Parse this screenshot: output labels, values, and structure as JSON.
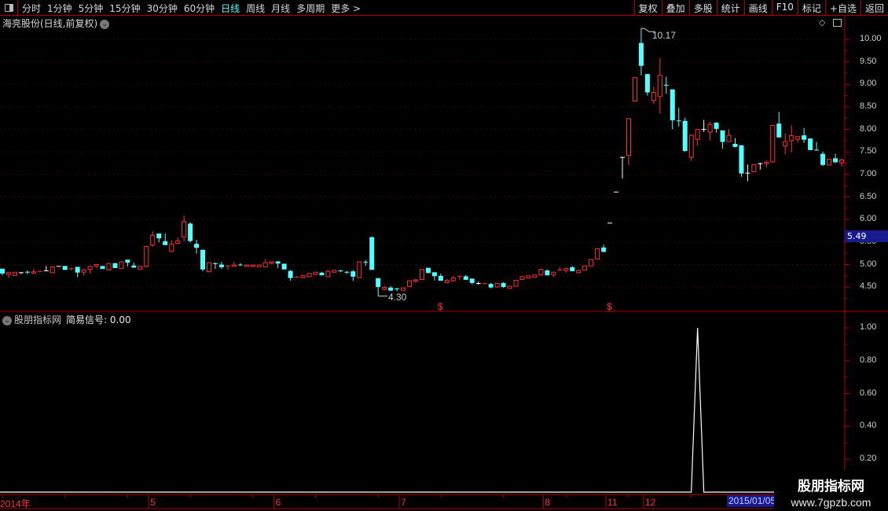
{
  "toolbar": {
    "tabs": [
      {
        "label": "分时"
      },
      {
        "label": "1分钟"
      },
      {
        "label": "5分钟"
      },
      {
        "label": "15分钟"
      },
      {
        "label": "30分钟"
      },
      {
        "label": "60分钟"
      },
      {
        "label": "日线",
        "active": true
      },
      {
        "label": "周线"
      },
      {
        "label": "月线"
      },
      {
        "label": "多周期"
      },
      {
        "label": "更多 >"
      }
    ],
    "buttons": [
      {
        "label": "复权"
      },
      {
        "label": "叠加"
      },
      {
        "label": "多股"
      },
      {
        "label": "统计"
      },
      {
        "label": "画线"
      },
      {
        "label": "F10"
      },
      {
        "label": "标记"
      },
      {
        "label": "+自选"
      },
      {
        "label": "返回"
      }
    ]
  },
  "main_chart": {
    "title": "海亮股份(日线,前复权)",
    "current_price": "5.49",
    "high_annotation": "10.17",
    "low_annotation": "4.30",
    "y_ticks": [
      "10.00",
      "9.50",
      "9.00",
      "8.50",
      "8.00",
      "7.50",
      "7.00",
      "6.50",
      "6.00",
      "5.50",
      "5.00",
      "4.50"
    ]
  },
  "indicator": {
    "name": "股朋指标网",
    "series_label": "简易信号: 0.00",
    "y_ticks": [
      "1.00",
      "0.80",
      "0.60",
      "0.40",
      "0.20"
    ]
  },
  "x_axis": {
    "ticks": [
      {
        "label": "2014年",
        "bar": 0
      },
      {
        "label": "5",
        "bar": 24
      },
      {
        "label": "6",
        "bar": 44
      },
      {
        "label": "7",
        "bar": 64
      },
      {
        "label": "8",
        "bar": 87
      },
      {
        "label": "11",
        "bar": 97
      },
      {
        "label": "12",
        "bar": 103
      }
    ],
    "cursor_date": "2015/01/05"
  },
  "watermark": {
    "line1": "股朋指标网",
    "line2": "www.7gpzb.com"
  },
  "colors": {
    "up": "#ff3232",
    "down": "#54ffff",
    "flat": "#ffffff",
    "axis": "#b00000",
    "signal": "#ffffff",
    "date_box": "#1a1a90"
  },
  "chart_data": [
    {
      "type": "candlestick",
      "title": "",
      "ylim": [
        4.2,
        10.3
      ],
      "grid": true,
      "ohlc_fields": [
        "open",
        "high",
        "low",
        "close"
      ],
      "ohlc": [
        [
          4.9,
          4.9,
          4.76,
          4.81
        ],
        [
          4.78,
          4.82,
          4.71,
          4.82
        ],
        [
          4.76,
          4.83,
          4.76,
          4.83
        ],
        [
          4.82,
          4.82,
          4.79,
          4.82
        ],
        [
          4.83,
          4.87,
          4.79,
          4.82
        ],
        [
          4.81,
          4.91,
          4.79,
          4.84
        ],
        [
          4.83,
          4.86,
          4.83,
          4.85
        ],
        [
          4.86,
          4.97,
          4.86,
          4.86
        ],
        [
          4.82,
          4.95,
          4.82,
          4.95
        ],
        [
          4.96,
          4.97,
          4.96,
          4.96
        ],
        [
          4.96,
          4.96,
          4.88,
          4.89
        ],
        [
          4.89,
          4.92,
          4.87,
          4.91
        ],
        [
          4.94,
          4.94,
          4.72,
          4.83
        ],
        [
          4.83,
          4.9,
          4.76,
          4.88
        ],
        [
          4.89,
          4.96,
          4.8,
          4.96
        ],
        [
          4.96,
          5.01,
          4.93,
          5.0
        ],
        [
          4.96,
          4.96,
          4.91,
          4.91
        ],
        [
          4.88,
          5.02,
          4.87,
          5.02
        ],
        [
          5.02,
          5.04,
          4.93,
          4.93
        ],
        [
          4.91,
          5.06,
          4.91,
          5.06
        ],
        [
          5.1,
          5.1,
          4.96,
          5.05
        ],
        [
          4.97,
          5.04,
          4.93,
          4.94
        ],
        [
          4.9,
          4.96,
          4.88,
          4.96
        ],
        [
          4.96,
          5.42,
          4.94,
          5.4
        ],
        [
          5.43,
          5.74,
          5.39,
          5.65
        ],
        [
          5.68,
          5.69,
          5.49,
          5.59
        ],
        [
          5.51,
          5.69,
          5.44,
          5.44
        ],
        [
          5.29,
          5.54,
          5.29,
          5.45
        ],
        [
          5.47,
          5.6,
          5.45,
          5.52
        ],
        [
          5.61,
          6.09,
          5.52,
          5.95
        ],
        [
          5.9,
          5.94,
          5.49,
          5.53
        ],
        [
          5.45,
          5.55,
          5.24,
          5.38
        ],
        [
          5.32,
          5.32,
          4.85,
          4.9
        ],
        [
          4.84,
          5.04,
          4.84,
          5.04
        ],
        [
          5.02,
          5.05,
          4.9,
          5.01
        ],
        [
          4.99,
          5.06,
          4.9,
          4.95
        ],
        [
          4.95,
          4.97,
          4.88,
          4.97
        ],
        [
          4.96,
          5.06,
          4.96,
          4.99
        ],
        [
          4.99,
          5.03,
          4.97,
          4.97
        ],
        [
          4.96,
          4.99,
          4.95,
          4.99
        ],
        [
          4.96,
          4.99,
          4.94,
          4.99
        ],
        [
          4.95,
          4.99,
          4.95,
          4.99
        ],
        [
          4.95,
          5.12,
          4.95,
          5.04
        ],
        [
          5.03,
          5.06,
          5.0,
          5.06
        ],
        [
          5.06,
          5.08,
          4.92,
          5.03
        ],
        [
          5.01,
          5.01,
          4.89,
          4.9
        ],
        [
          4.85,
          4.88,
          4.64,
          4.71
        ],
        [
          4.71,
          4.74,
          4.71,
          4.72
        ],
        [
          4.71,
          4.77,
          4.7,
          4.75
        ],
        [
          4.73,
          4.8,
          4.72,
          4.8
        ],
        [
          4.78,
          4.83,
          4.78,
          4.83
        ],
        [
          4.81,
          4.84,
          4.76,
          4.77
        ],
        [
          4.73,
          4.88,
          4.72,
          4.85
        ],
        [
          4.83,
          4.87,
          4.83,
          4.87
        ],
        [
          4.86,
          4.88,
          4.83,
          4.84
        ],
        [
          4.83,
          4.86,
          4.79,
          4.82
        ],
        [
          4.84,
          4.88,
          4.64,
          4.74
        ],
        [
          4.71,
          5.06,
          4.71,
          5.06
        ],
        [
          5.05,
          5.1,
          4.97,
          5.04
        ],
        [
          5.6,
          5.62,
          4.89,
          4.89
        ],
        [
          4.69,
          4.69,
          4.3,
          4.51
        ],
        [
          4.45,
          4.53,
          4.43,
          4.49
        ],
        [
          4.48,
          4.52,
          4.41,
          4.43
        ],
        [
          4.46,
          4.48,
          4.41,
          4.45
        ],
        [
          4.43,
          4.48,
          4.42,
          4.48
        ],
        [
          4.51,
          4.64,
          4.51,
          4.64
        ],
        [
          4.63,
          4.68,
          4.59,
          4.66
        ],
        [
          4.67,
          4.9,
          4.67,
          4.89
        ],
        [
          4.92,
          4.92,
          4.81,
          4.82
        ],
        [
          4.82,
          4.82,
          4.65,
          4.75
        ],
        [
          4.74,
          4.8,
          4.64,
          4.65
        ],
        [
          4.6,
          4.68,
          4.6,
          4.65
        ],
        [
          4.64,
          4.75,
          4.62,
          4.7
        ],
        [
          4.73,
          4.74,
          4.66,
          4.74
        ],
        [
          4.73,
          4.77,
          4.66,
          4.67
        ],
        [
          4.68,
          4.68,
          4.56,
          4.6
        ],
        [
          4.58,
          4.62,
          4.55,
          4.58
        ],
        [
          4.57,
          4.59,
          4.56,
          4.58
        ],
        [
          4.56,
          4.59,
          4.47,
          4.5
        ],
        [
          4.5,
          4.58,
          4.49,
          4.58
        ],
        [
          4.58,
          4.61,
          4.48,
          4.51
        ],
        [
          4.47,
          4.52,
          4.46,
          4.52
        ],
        [
          4.52,
          4.66,
          4.52,
          4.65
        ],
        [
          4.67,
          4.73,
          4.67,
          4.73
        ],
        [
          4.7,
          4.76,
          4.7,
          4.75
        ],
        [
          4.72,
          4.77,
          4.72,
          4.77
        ],
        [
          4.77,
          4.91,
          4.75,
          4.89
        ],
        [
          4.86,
          4.89,
          4.76,
          4.77
        ],
        [
          4.77,
          4.84,
          4.72,
          4.83
        ],
        [
          4.86,
          4.94,
          4.86,
          4.88
        ],
        [
          4.87,
          4.93,
          4.82,
          4.91
        ],
        [
          4.93,
          4.97,
          4.85,
          4.86
        ],
        [
          4.82,
          4.88,
          4.81,
          4.87
        ],
        [
          4.88,
          4.97,
          4.88,
          4.97
        ],
        [
          4.97,
          5.11,
          4.97,
          5.11
        ],
        [
          5.12,
          5.36,
          5.12,
          5.35
        ],
        [
          5.37,
          5.44,
          5.27,
          5.29
        ],
        [
          5.92,
          5.92,
          5.92,
          5.92
        ],
        [
          6.61,
          6.61,
          6.61,
          6.61
        ],
        [
          7.38,
          7.38,
          6.91,
          7.38
        ],
        [
          7.42,
          8.24,
          7.21,
          8.24
        ],
        [
          8.63,
          9.15,
          8.63,
          9.15
        ],
        [
          9.91,
          10.17,
          9.2,
          9.42
        ],
        [
          9.22,
          9.22,
          8.75,
          8.83
        ],
        [
          8.64,
          8.95,
          8.56,
          8.82
        ],
        [
          8.73,
          9.59,
          8.35,
          9.2
        ],
        [
          8.98,
          9.17,
          8.79,
          8.97
        ],
        [
          8.88,
          8.88,
          8.0,
          8.21
        ],
        [
          8.19,
          8.48,
          8.06,
          8.18
        ],
        [
          8.18,
          8.26,
          7.5,
          7.53
        ],
        [
          7.38,
          7.89,
          7.3,
          7.87
        ],
        [
          7.78,
          8.0,
          7.64,
          8.0
        ],
        [
          8.0,
          8.21,
          7.94,
          8.0
        ],
        [
          7.94,
          8.17,
          7.75,
          8.11
        ],
        [
          8.14,
          8.16,
          7.93,
          8.02
        ],
        [
          7.97,
          7.97,
          7.57,
          7.73
        ],
        [
          7.73,
          8.01,
          7.73,
          7.87
        ],
        [
          7.67,
          7.81,
          7.6,
          7.62
        ],
        [
          7.64,
          7.64,
          6.95,
          7.03
        ],
        [
          7.03,
          7.22,
          6.85,
          7.03
        ],
        [
          7.06,
          7.22,
          7.05,
          7.22
        ],
        [
          7.24,
          7.26,
          7.11,
          7.24
        ],
        [
          7.24,
          7.31,
          7.15,
          7.27
        ],
        [
          7.28,
          8.09,
          7.26,
          8.09
        ],
        [
          8.12,
          8.39,
          7.83,
          7.83
        ],
        [
          7.63,
          7.91,
          7.45,
          7.73
        ],
        [
          7.75,
          8.09,
          7.49,
          7.86
        ],
        [
          7.78,
          7.84,
          7.71,
          7.84
        ],
        [
          7.86,
          8.03,
          7.7,
          7.78
        ],
        [
          7.79,
          7.79,
          7.55,
          7.55
        ],
        [
          7.54,
          7.72,
          7.53,
          7.53
        ],
        [
          7.45,
          7.51,
          7.19,
          7.22
        ],
        [
          7.21,
          7.34,
          7.21,
          7.34
        ],
        [
          7.35,
          7.46,
          7.25,
          7.28
        ],
        [
          7.26,
          7.36,
          7.17,
          7.32
        ]
      ],
      "signal_markers": {
        "symbol": "$",
        "bars": [
          70,
          97
        ]
      },
      "high_point": {
        "bar": 102,
        "value": 10.17
      },
      "low_point": {
        "bar": 60,
        "value": 4.3
      }
    },
    {
      "type": "line",
      "title": "",
      "series": [
        {
          "name": "简易信号",
          "spike_bar": 111,
          "spike_value": 1.0,
          "base_value": 0.0
        }
      ],
      "ylim": [
        0,
        1.05
      ]
    }
  ]
}
